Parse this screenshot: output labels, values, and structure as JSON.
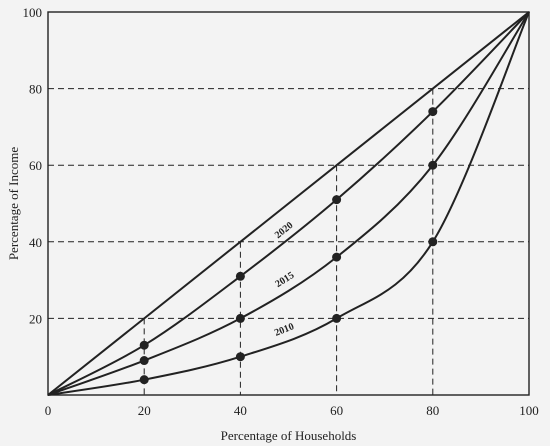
{
  "chart_data": {
    "type": "line",
    "title": "",
    "xlabel": "Percentage of Households",
    "ylabel": "Percentage of Income",
    "xlim": [
      0,
      100
    ],
    "ylim": [
      0,
      100
    ],
    "x_ticks": [
      "0",
      "20",
      "40",
      "60",
      "80",
      "100"
    ],
    "y_ticks": [
      "20",
      "40",
      "60",
      "80",
      "100"
    ],
    "grid": "dashed guide lines at marked points",
    "equality_line": {
      "x": [
        0,
        100
      ],
      "y": [
        0,
        100
      ]
    },
    "series": [
      {
        "name": "2020",
        "x": [
          0,
          20,
          40,
          60,
          80,
          100
        ],
        "y": [
          0,
          13,
          31,
          51,
          74,
          100
        ],
        "label_at": 0.51
      },
      {
        "name": "2015",
        "x": [
          0,
          20,
          40,
          60,
          80,
          100
        ],
        "y": [
          0,
          9,
          20,
          36,
          60,
          100
        ],
        "label_at": 0.51
      },
      {
        "name": "2010",
        "x": [
          0,
          20,
          40,
          60,
          80,
          100
        ],
        "y": [
          0,
          4,
          10,
          20,
          40,
          100
        ],
        "label_at": 0.49
      }
    ],
    "guides_x": [
      20,
      40,
      60,
      80
    ],
    "guides_y": [
      20,
      40,
      60,
      80
    ],
    "colors": {
      "line": "#222222",
      "background": "#f3f3f3"
    }
  }
}
